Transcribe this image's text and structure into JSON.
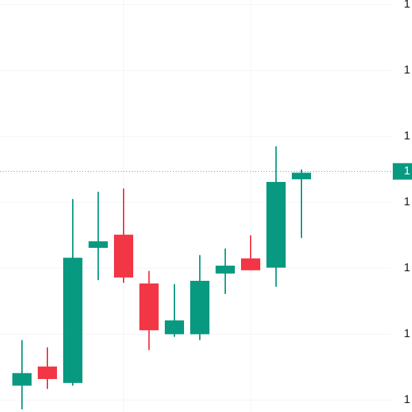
{
  "chart_data": {
    "type": "candlestick",
    "categories": [
      null,
      null,
      null,
      null,
      null,
      null,
      null,
      null,
      null,
      null,
      null,
      null
    ],
    "open": [
      0.22,
      0.51,
      0.26,
      2.31,
      2.51,
      1.77,
      1.0,
      1.0,
      1.92,
      2.15,
      2.01,
      3.35
    ],
    "high": [
      0.91,
      0.8,
      3.05,
      3.16,
      3.21,
      1.96,
      1.76,
      2.2,
      2.3,
      2.5,
      3.85,
      3.5
    ],
    "low": [
      -0.14,
      0.17,
      0.22,
      1.82,
      1.78,
      0.76,
      0.96,
      0.91,
      1.61,
      1.97,
      1.72,
      2.46
    ],
    "close": [
      0.41,
      0.32,
      2.16,
      2.41,
      1.86,
      1.06,
      1.21,
      1.81,
      2.04,
      1.97,
      3.31,
      3.45
    ],
    "up_color": "#089981",
    "down_color": "#f23645",
    "ylim": [
      -0.18,
      6.07
    ],
    "yticks": [
      {
        "value": 0,
        "label": "1"
      },
      {
        "value": 1,
        "label": "1"
      },
      {
        "value": 2,
        "label": "1"
      },
      {
        "value": 3,
        "label": "1"
      },
      {
        "value": 4,
        "label": "1"
      },
      {
        "value": 5,
        "label": "1"
      },
      {
        "value": 6,
        "label": "1"
      }
    ],
    "last_price": {
      "value": 3.47,
      "label": "1"
    },
    "grid": true
  }
}
